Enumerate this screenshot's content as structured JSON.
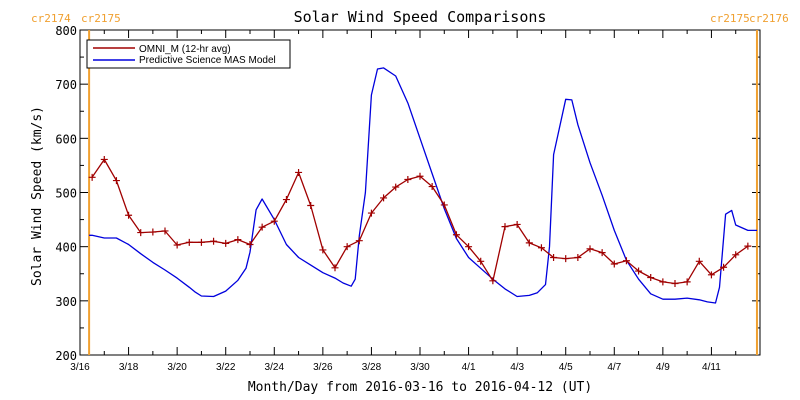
{
  "chart_data": {
    "type": "line",
    "title": "Solar Wind Speed Comparisons",
    "xlabel": "Month/Day from 2016-03-16 to 2016-04-12 (UT)",
    "ylabel": "Solar Wind Speed (km/s)",
    "ylim": [
      200,
      800
    ],
    "yticks": [
      200,
      300,
      400,
      500,
      600,
      700,
      800
    ],
    "xlim": [
      "2016-03-16",
      "2016-04-12"
    ],
    "xticks": [
      {
        "date": "2016-03-16",
        "label": "3/16"
      },
      {
        "date": "2016-03-18",
        "label": "3/18"
      },
      {
        "date": "2016-03-20",
        "label": "3/20"
      },
      {
        "date": "2016-03-22",
        "label": "3/22"
      },
      {
        "date": "2016-03-24",
        "label": "3/24"
      },
      {
        "date": "2016-03-26",
        "label": "3/26"
      },
      {
        "date": "2016-03-28",
        "label": "3/28"
      },
      {
        "date": "2016-03-30",
        "label": "3/30"
      },
      {
        "date": "2016-04-01",
        "label": "4/1"
      },
      {
        "date": "2016-04-03",
        "label": "4/3"
      },
      {
        "date": "2016-04-05",
        "label": "4/5"
      },
      {
        "date": "2016-04-07",
        "label": "4/7"
      },
      {
        "date": "2016-04-09",
        "label": "4/9"
      },
      {
        "date": "2016-04-11",
        "label": "4/11"
      }
    ],
    "legend_position": "top-left",
    "grid": false,
    "carrington_markers": [
      {
        "date": "2016-03-16 09:00",
        "left_label": "cr2174",
        "right_label": "cr2175",
        "color": "#f0a030"
      },
      {
        "date": "2016-04-12 21:00",
        "left_label": "cr2175",
        "right_label": "cr2176",
        "color": "#f0a030"
      }
    ],
    "series": [
      {
        "name": "OMNI_M (12-hr avg)",
        "color": "#a00000",
        "marker": "+",
        "x": [
          "2016-03-16 12:00",
          "2016-03-17 00:00",
          "2016-03-17 12:00",
          "2016-03-18 00:00",
          "2016-03-18 12:00",
          "2016-03-19 00:00",
          "2016-03-19 12:00",
          "2016-03-20 00:00",
          "2016-03-20 12:00",
          "2016-03-21 00:00",
          "2016-03-21 12:00",
          "2016-03-22 00:00",
          "2016-03-22 12:00",
          "2016-03-23 00:00",
          "2016-03-23 12:00",
          "2016-03-24 00:00",
          "2016-03-24 12:00",
          "2016-03-25 00:00",
          "2016-03-25 12:00",
          "2016-03-26 00:00",
          "2016-03-26 12:00",
          "2016-03-27 00:00",
          "2016-03-27 12:00",
          "2016-03-28 00:00",
          "2016-03-28 12:00",
          "2016-03-29 00:00",
          "2016-03-29 12:00",
          "2016-03-30 00:00",
          "2016-03-30 12:00",
          "2016-03-31 00:00",
          "2016-03-31 12:00",
          "2016-04-01 00:00",
          "2016-04-01 12:00",
          "2016-04-02 00:00",
          "2016-04-02 12:00",
          "2016-04-03 00:00",
          "2016-04-03 12:00",
          "2016-04-04 00:00",
          "2016-04-04 12:00",
          "2016-04-05 00:00",
          "2016-04-05 12:00",
          "2016-04-06 00:00",
          "2016-04-06 12:00",
          "2016-04-07 00:00",
          "2016-04-07 12:00",
          "2016-04-08 00:00",
          "2016-04-08 12:00",
          "2016-04-09 00:00",
          "2016-04-09 12:00",
          "2016-04-10 00:00",
          "2016-04-10 12:00",
          "2016-04-11 00:00",
          "2016-04-11 12:00",
          "2016-04-12 00:00",
          "2016-04-12 12:00"
        ],
        "y": [
          528,
          561,
          522,
          458,
          426,
          427,
          429,
          403,
          408,
          408,
          410,
          406,
          413,
          404,
          436,
          447,
          487,
          537,
          476,
          394,
          361,
          400,
          411,
          462,
          490,
          510,
          524,
          530,
          511,
          477,
          422,
          400,
          373,
          337,
          437,
          441,
          407,
          398,
          380,
          378,
          380,
          396,
          389,
          368,
          374,
          355,
          343,
          335,
          332,
          335,
          373,
          348,
          362,
          385,
          401
        ]
      },
      {
        "name": "Predictive Science MAS Model",
        "color": "#0000dd",
        "marker": "none",
        "x": [
          "2016-03-16 09:00",
          "2016-03-16 12:00",
          "2016-03-17 00:00",
          "2016-03-17 12:00",
          "2016-03-18 00:00",
          "2016-03-18 12:00",
          "2016-03-19 00:00",
          "2016-03-19 12:00",
          "2016-03-20 00:00",
          "2016-03-20 12:00",
          "2016-03-20 18:00",
          "2016-03-21 00:00",
          "2016-03-21 12:00",
          "2016-03-22 00:00",
          "2016-03-22 12:00",
          "2016-03-22 20:00",
          "2016-03-23 00:00",
          "2016-03-23 06:00",
          "2016-03-23 12:00",
          "2016-03-24 00:00",
          "2016-03-24 12:00",
          "2016-03-25 00:00",
          "2016-03-25 12:00",
          "2016-03-26 00:00",
          "2016-03-26 12:00",
          "2016-03-26 20:00",
          "2016-03-27 04:00",
          "2016-03-27 08:00",
          "2016-03-27 12:00",
          "2016-03-27 18:00",
          "2016-03-28 00:00",
          "2016-03-28 06:00",
          "2016-03-28 12:00",
          "2016-03-29 00:00",
          "2016-03-29 12:00",
          "2016-03-30 00:00",
          "2016-03-30 12:00",
          "2016-03-31 00:00",
          "2016-03-31 12:00",
          "2016-04-01 00:00",
          "2016-04-01 12:00",
          "2016-04-02 00:00",
          "2016-04-02 12:00",
          "2016-04-03 00:00",
          "2016-04-03 12:00",
          "2016-04-03 20:00",
          "2016-04-04 04:00",
          "2016-04-04 08:00",
          "2016-04-04 12:00",
          "2016-04-05 00:00",
          "2016-04-05 06:00",
          "2016-04-05 12:00",
          "2016-04-06 00:00",
          "2016-04-06 12:00",
          "2016-04-07 00:00",
          "2016-04-07 12:00",
          "2016-04-08 00:00",
          "2016-04-08 12:00",
          "2016-04-09 00:00",
          "2016-04-09 12:00",
          "2016-04-10 00:00",
          "2016-04-10 12:00",
          "2016-04-10 20:00",
          "2016-04-11 04:00",
          "2016-04-11 08:00",
          "2016-04-11 14:00",
          "2016-04-11 20:00",
          "2016-04-12 00:00",
          "2016-04-12 12:00",
          "2016-04-12 21:00"
        ],
        "y": [
          421,
          421,
          416,
          416,
          404,
          387,
          371,
          357,
          342,
          325,
          316,
          309,
          308,
          318,
          338,
          360,
          390,
          468,
          488,
          450,
          404,
          380,
          366,
          352,
          342,
          333,
          327,
          340,
          420,
          500,
          680,
          728,
          730,
          715,
          665,
          600,
          535,
          470,
          415,
          380,
          360,
          340,
          322,
          308,
          310,
          315,
          330,
          400,
          570,
          672,
          671,
          625,
          555,
          495,
          430,
          375,
          340,
          313,
          303,
          303,
          305,
          302,
          298,
          296,
          325,
          460,
          467,
          440,
          430,
          430
        ]
      }
    ]
  }
}
